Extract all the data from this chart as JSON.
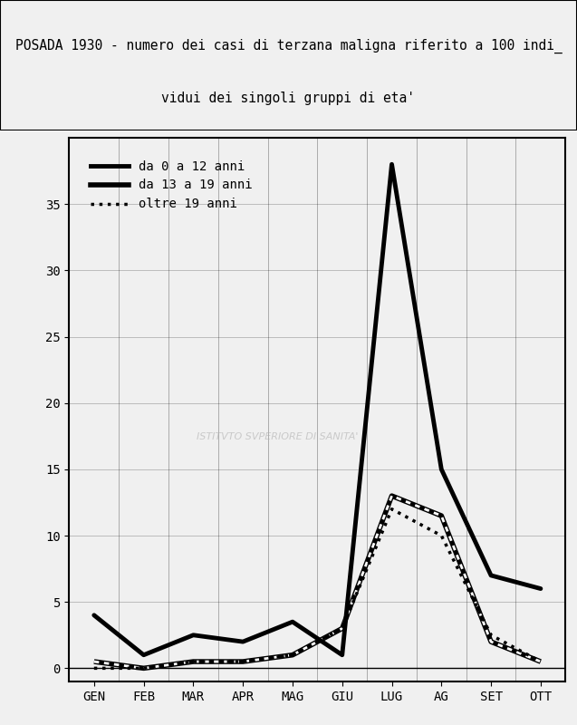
{
  "title_line1": "POSADA 1930 - numero dei casi di terzana maligna riferito a 100 indi_",
  "title_line2": "vidui dei singoli gruppi di eta'",
  "months": [
    "GEN",
    "FEB",
    "MAR",
    "APR",
    "MAG",
    "GIU",
    "LUG",
    "AG",
    "SET",
    "OTT"
  ],
  "series": [
    {
      "label": "da 0 a 12 anni",
      "style": "solid_thick",
      "values": [
        4.0,
        1.0,
        2.5,
        2.0,
        3.5,
        1.0,
        38.0,
        15.0,
        7.0,
        6.0
      ]
    },
    {
      "label": "da 13 a 19 anni",
      "style": "dashed_white",
      "values": [
        0.5,
        0.0,
        0.5,
        0.5,
        1.0,
        3.0,
        13.0,
        11.5,
        2.0,
        0.5
      ]
    },
    {
      "label": "oltre 19 anni",
      "style": "dotted",
      "values": [
        0.0,
        0.0,
        0.5,
        0.5,
        1.0,
        3.0,
        12.0,
        10.0,
        2.5,
        0.5
      ]
    }
  ],
  "ylim": [
    -1,
    40
  ],
  "yticks": [
    0,
    5,
    10,
    15,
    20,
    25,
    30,
    35
  ],
  "background_color": "#f5f5f5",
  "plot_background": "#f0f0f0",
  "line_color": "#000000",
  "fontsize_title": 11,
  "fontsize_ticks": 10,
  "fontsize_legend": 10
}
